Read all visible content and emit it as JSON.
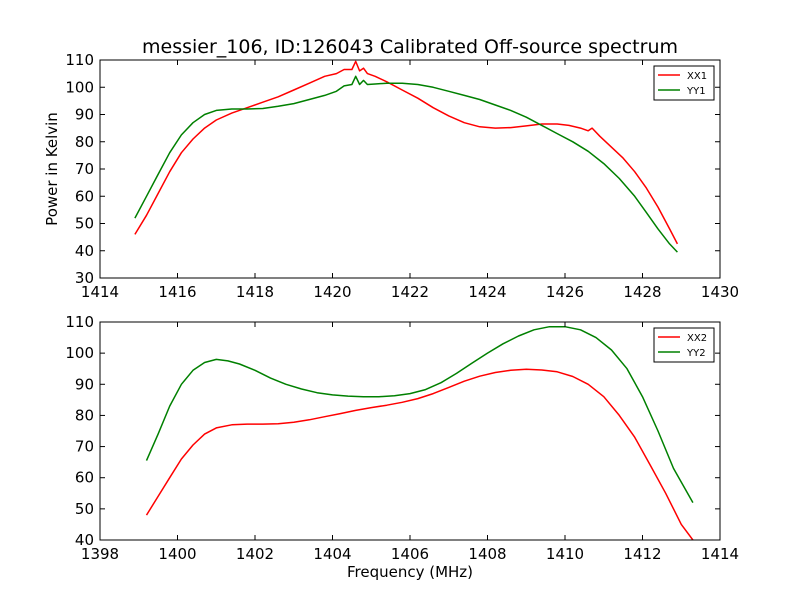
{
  "figure": {
    "title": "messier_106, ID:126043 Calibrated Off-source spectrum"
  },
  "chart_data": [
    {
      "type": "line",
      "title": "messier_106, ID:126043 Calibrated Off-source spectrum",
      "xlabel": "",
      "ylabel": "Power in Kelvin",
      "xlim": [
        1414,
        1430
      ],
      "ylim": [
        30,
        110
      ],
      "xticks": [
        1414,
        1416,
        1418,
        1420,
        1422,
        1424,
        1426,
        1428,
        1430
      ],
      "yticks": [
        30,
        40,
        50,
        60,
        70,
        80,
        90,
        100,
        110
      ],
      "grid": false,
      "legend": "top-right",
      "series": [
        {
          "name": "XX1",
          "color": "#ff0000",
          "x": [
            1414.9,
            1415.2,
            1415.5,
            1415.8,
            1416.1,
            1416.4,
            1416.7,
            1417.0,
            1417.4,
            1417.8,
            1418.2,
            1418.6,
            1419.0,
            1419.4,
            1419.8,
            1420.1,
            1420.3,
            1420.5,
            1420.6,
            1420.7,
            1420.8,
            1420.9,
            1421.1,
            1421.4,
            1421.8,
            1422.2,
            1422.6,
            1423.0,
            1423.4,
            1423.8,
            1424.2,
            1424.6,
            1425.0,
            1425.4,
            1425.8,
            1426.1,
            1426.4,
            1426.6,
            1426.7,
            1426.9,
            1427.2,
            1427.5,
            1427.8,
            1428.1,
            1428.4,
            1428.7,
            1428.9
          ],
          "y": [
            46,
            53,
            61,
            69,
            76,
            81,
            85,
            88,
            90.5,
            92.5,
            94.5,
            96.5,
            99,
            101.5,
            104,
            105,
            106.5,
            106.5,
            109.5,
            106,
            107,
            105,
            104,
            102,
            99,
            96,
            92.5,
            89.5,
            87,
            85.5,
            85,
            85.2,
            85.8,
            86.5,
            86.5,
            86,
            85,
            84,
            85,
            82,
            78,
            74,
            69,
            63,
            56,
            48,
            42.5
          ]
        },
        {
          "name": "YY1",
          "color": "#008000",
          "x": [
            1414.9,
            1415.2,
            1415.5,
            1415.8,
            1416.1,
            1416.4,
            1416.7,
            1417.0,
            1417.4,
            1417.8,
            1418.2,
            1418.6,
            1419.0,
            1419.4,
            1419.8,
            1420.1,
            1420.3,
            1420.5,
            1420.6,
            1420.7,
            1420.8,
            1420.9,
            1421.1,
            1421.4,
            1421.8,
            1422.2,
            1422.6,
            1423.0,
            1423.4,
            1423.8,
            1424.2,
            1424.6,
            1425.0,
            1425.4,
            1425.8,
            1426.2,
            1426.6,
            1427.0,
            1427.4,
            1427.8,
            1428.1,
            1428.4,
            1428.7,
            1428.9
          ],
          "y": [
            52,
            60,
            68,
            76,
            82.5,
            87,
            90,
            91.5,
            92,
            92,
            92.2,
            93,
            94,
            95.5,
            97,
            98.5,
            100.5,
            101,
            104,
            101,
            102.5,
            101,
            101.2,
            101.5,
            101.5,
            101,
            100,
            98.5,
            97,
            95.5,
            93.5,
            91.5,
            89,
            86,
            83,
            80,
            76.5,
            72,
            66.5,
            60,
            54,
            48,
            42.5,
            39.5
          ]
        }
      ]
    },
    {
      "type": "line",
      "title": "",
      "xlabel": "Frequency (MHz)",
      "ylabel": "",
      "xlim": [
        1398,
        1414
      ],
      "ylim": [
        40,
        110
      ],
      "xticks": [
        1398,
        1400,
        1402,
        1404,
        1406,
        1408,
        1410,
        1412,
        1414
      ],
      "yticks": [
        40,
        50,
        60,
        70,
        80,
        90,
        100,
        110
      ],
      "grid": false,
      "legend": "top-right",
      "series": [
        {
          "name": "XX2",
          "color": "#ff0000",
          "x": [
            1399.2,
            1399.5,
            1399.8,
            1400.1,
            1400.4,
            1400.7,
            1401.0,
            1401.4,
            1401.8,
            1402.2,
            1402.6,
            1403.0,
            1403.4,
            1403.8,
            1404.2,
            1404.6,
            1405.0,
            1405.4,
            1405.8,
            1406.2,
            1406.6,
            1407.0,
            1407.4,
            1407.8,
            1408.2,
            1408.6,
            1409.0,
            1409.4,
            1409.8,
            1410.2,
            1410.6,
            1411.0,
            1411.4,
            1411.8,
            1412.2,
            1412.6,
            1413.0,
            1413.3
          ],
          "y": [
            48,
            54,
            60,
            66,
            70.5,
            74,
            76,
            77,
            77.2,
            77.2,
            77.3,
            77.8,
            78.6,
            79.6,
            80.6,
            81.6,
            82.5,
            83.3,
            84.2,
            85.4,
            87,
            89,
            91,
            92.6,
            93.8,
            94.5,
            94.8,
            94.6,
            94,
            92.5,
            90,
            86,
            80,
            73,
            64,
            55,
            45,
            40
          ]
        },
        {
          "name": "YY2",
          "color": "#008000",
          "x": [
            1399.2,
            1399.5,
            1399.8,
            1400.1,
            1400.4,
            1400.7,
            1401.0,
            1401.3,
            1401.6,
            1402.0,
            1402.4,
            1402.8,
            1403.2,
            1403.6,
            1404.0,
            1404.4,
            1404.8,
            1405.2,
            1405.6,
            1406.0,
            1406.4,
            1406.8,
            1407.2,
            1407.6,
            1408.0,
            1408.4,
            1408.8,
            1409.2,
            1409.6,
            1410.0,
            1410.4,
            1410.8,
            1411.2,
            1411.6,
            1412.0,
            1412.4,
            1412.8,
            1413.3
          ],
          "y": [
            65.5,
            74,
            83,
            90,
            94.5,
            97,
            98,
            97.5,
            96.5,
            94.5,
            92,
            90,
            88.5,
            87.3,
            86.6,
            86.2,
            86,
            86,
            86.3,
            87,
            88.3,
            90.5,
            93.5,
            96.8,
            100,
            103,
            105.5,
            107.5,
            108.5,
            108.5,
            107.5,
            105,
            101,
            95,
            86,
            75,
            63,
            52
          ]
        }
      ]
    }
  ]
}
